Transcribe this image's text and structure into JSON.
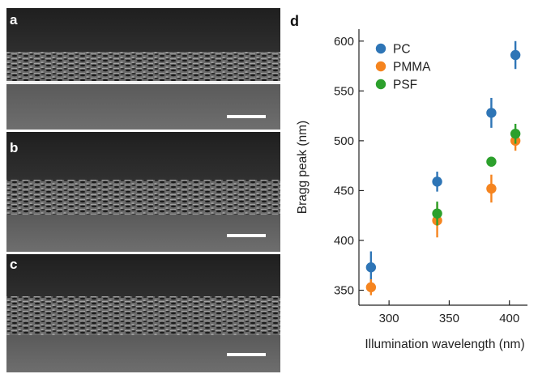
{
  "panels": [
    {
      "label": "a",
      "scale_bar": true
    },
    {
      "label": "b",
      "scale_bar": true
    },
    {
      "label": "c",
      "scale_bar": true
    }
  ],
  "chart_data": {
    "panel_label": "d",
    "type": "scatter",
    "xlabel": "Illumination wavelength (nm)",
    "ylabel": "Bragg peak (nm)",
    "xlim": [
      275,
      415
    ],
    "ylim": [
      335,
      612
    ],
    "xticks": [
      300,
      350,
      400
    ],
    "yticks": [
      350,
      400,
      450,
      500,
      550,
      600
    ],
    "legend_position": "top-left",
    "grid": false,
    "series": [
      {
        "name": "PC",
        "color": "#2e75b6",
        "points": [
          {
            "x": 285,
            "y": 373,
            "err": 16
          },
          {
            "x": 340,
            "y": 459,
            "err": 10
          },
          {
            "x": 385,
            "y": 528,
            "err": 15
          },
          {
            "x": 405,
            "y": 586,
            "err": 14
          }
        ]
      },
      {
        "name": "PMMA",
        "color": "#f5841f",
        "points": [
          {
            "x": 285,
            "y": 353,
            "err": 8
          },
          {
            "x": 340,
            "y": 420,
            "err": 17
          },
          {
            "x": 385,
            "y": 452,
            "err": 14
          },
          {
            "x": 405,
            "y": 500,
            "err": 10
          }
        ]
      },
      {
        "name": "PSF",
        "color": "#2ca02c",
        "points": [
          {
            "x": 340,
            "y": 427,
            "err": 12
          },
          {
            "x": 385,
            "y": 479,
            "err": 5
          },
          {
            "x": 405,
            "y": 507,
            "err": 10
          }
        ]
      }
    ]
  }
}
